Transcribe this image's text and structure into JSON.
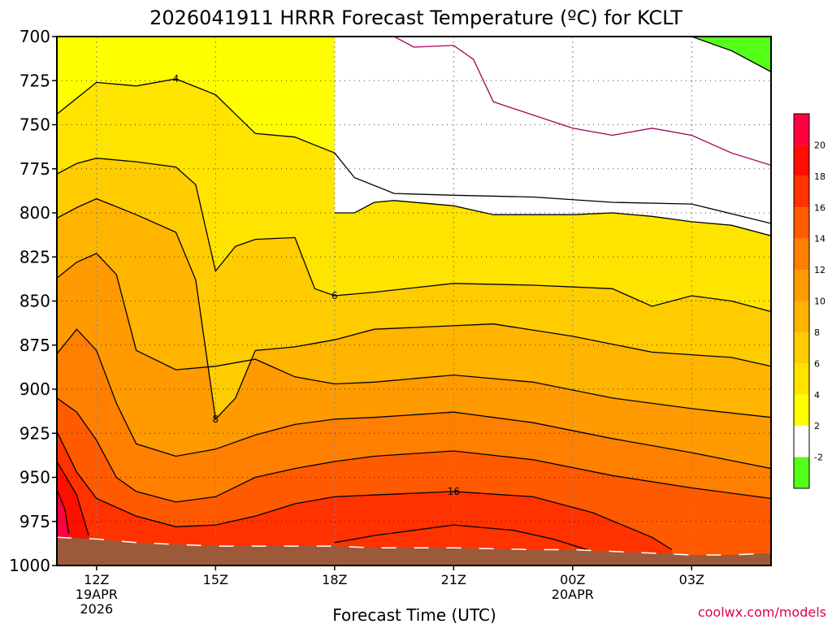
{
  "chart_data": {
    "type": "heatmap",
    "title": "2026041911 HRRR Forecast Temperature (ºC) for KCLT",
    "xlabel": "Forecast Time (UTC)",
    "ylabel": "",
    "watermark": "coolwx.com/models",
    "y_axis": {
      "scale": "pressure",
      "ticks": [
        700,
        725,
        750,
        775,
        800,
        825,
        850,
        875,
        900,
        925,
        950,
        975,
        1000
      ],
      "labels": [
        "700",
        "725",
        "750",
        "775",
        "800",
        "825",
        "850",
        "875",
        "900",
        "925",
        "950",
        "975",
        "1000"
      ],
      "ylim": [
        1000,
        700
      ]
    },
    "x_axis": {
      "ticks_hours": [
        12,
        15,
        18,
        21,
        24,
        27
      ],
      "labels": [
        "12Z",
        "15Z",
        "18Z",
        "21Z",
        "00Z",
        "03Z"
      ],
      "sublabels": [
        "19APR\n2026",
        "",
        "",
        "",
        "20APR",
        ""
      ],
      "xlim_hours": [
        11,
        29
      ]
    },
    "grid": true,
    "colorbar": {
      "levels": [
        -2,
        2,
        4,
        6,
        8,
        10,
        12,
        14,
        16,
        18,
        20
      ],
      "labels": [
        "-2",
        "2",
        "4",
        "6",
        "8",
        "10",
        "12",
        "14",
        "16",
        "18",
        "20"
      ],
      "colors": [
        "#55ff1a",
        "#ffffff",
        "#ffff00",
        "#ffe400",
        "#ffcc00",
        "#ffb400",
        "#ff9b00",
        "#ff7f00",
        "#ff5a00",
        "#ff3200",
        "#ff0f00",
        "#ff0040"
      ]
    },
    "isotherms": [
      {
        "value": 0,
        "labeled": false,
        "points": [
          [
            17.0,
            700
          ],
          [
            18.0,
            700
          ],
          [
            19.5,
            700
          ],
          [
            20.0,
            706
          ],
          [
            21.0,
            705
          ],
          [
            21.5,
            713
          ],
          [
            22.0,
            737
          ],
          [
            24.0,
            752
          ],
          [
            25.0,
            756
          ],
          [
            26.0,
            752
          ],
          [
            27.0,
            756
          ],
          [
            28.0,
            766
          ],
          [
            29.0,
            773
          ]
        ]
      },
      {
        "value": 2,
        "labeled": false,
        "points": [
          [
            18.0,
            800
          ],
          [
            18.5,
            800
          ],
          [
            19.0,
            794
          ],
          [
            19.5,
            793
          ],
          [
            21.0,
            796
          ],
          [
            22.0,
            801
          ],
          [
            24.0,
            801
          ],
          [
            25.0,
            800
          ],
          [
            26.0,
            802
          ],
          [
            27.0,
            805
          ],
          [
            28.0,
            807
          ],
          [
            29.0,
            813
          ]
        ]
      },
      {
        "value": 4,
        "labeled": true,
        "label_at": [
          14.0,
          724
        ],
        "points": [
          [
            11.0,
            744
          ],
          [
            11.5,
            735
          ],
          [
            12.0,
            726
          ],
          [
            13.0,
            728
          ],
          [
            14.0,
            724
          ],
          [
            15.0,
            733
          ],
          [
            16.0,
            755
          ],
          [
            17.0,
            757
          ],
          [
            18.0,
            766
          ],
          [
            18.5,
            780
          ],
          [
            19.5,
            789
          ],
          [
            21.0,
            790
          ],
          [
            23.0,
            791
          ],
          [
            25.0,
            794
          ],
          [
            27.0,
            795
          ],
          [
            29.0,
            806
          ]
        ]
      },
      {
        "value": 6,
        "labeled": true,
        "label_at": [
          18.0,
          847
        ],
        "points": [
          [
            11.0,
            778
          ],
          [
            11.5,
            772
          ],
          [
            12.0,
            769
          ],
          [
            13.0,
            771
          ],
          [
            14.0,
            774
          ],
          [
            14.5,
            784
          ],
          [
            15.0,
            833
          ],
          [
            15.5,
            819
          ],
          [
            16.0,
            815
          ],
          [
            17.0,
            814
          ],
          [
            17.5,
            843
          ],
          [
            18.0,
            847
          ],
          [
            19.0,
            845
          ],
          [
            21.0,
            840
          ],
          [
            23.0,
            841
          ],
          [
            25.0,
            843
          ],
          [
            26.0,
            853
          ],
          [
            27.0,
            847
          ],
          [
            28.0,
            850
          ],
          [
            29.0,
            856
          ]
        ]
      },
      {
        "value": 8,
        "labeled": true,
        "label_at": [
          15.0,
          917
        ],
        "points": [
          [
            11.0,
            803
          ],
          [
            11.5,
            797
          ],
          [
            12.0,
            792
          ],
          [
            13.0,
            801
          ],
          [
            14.0,
            811
          ],
          [
            14.5,
            838
          ],
          [
            15.0,
            917
          ],
          [
            15.5,
            905
          ],
          [
            16.0,
            878
          ],
          [
            17.0,
            876
          ],
          [
            18.0,
            872
          ],
          [
            19.0,
            866
          ],
          [
            21.0,
            864
          ],
          [
            22.0,
            863
          ],
          [
            24.0,
            870
          ],
          [
            26.0,
            879
          ],
          [
            28.0,
            882
          ],
          [
            29.0,
            887
          ]
        ]
      },
      {
        "value": 10,
        "labeled": false,
        "points": [
          [
            11.0,
            837
          ],
          [
            11.5,
            828
          ],
          [
            12.0,
            823
          ],
          [
            12.5,
            835
          ],
          [
            13.0,
            878
          ],
          [
            14.0,
            889
          ],
          [
            15.0,
            887
          ],
          [
            16.0,
            883
          ],
          [
            17.0,
            893
          ],
          [
            18.0,
            897
          ],
          [
            19.0,
            896
          ],
          [
            21.0,
            892
          ],
          [
            23.0,
            896
          ],
          [
            25.0,
            905
          ],
          [
            27.0,
            911
          ],
          [
            29.0,
            916
          ]
        ]
      },
      {
        "value": 12,
        "labeled": false,
        "points": [
          [
            11.0,
            880
          ],
          [
            11.5,
            866
          ],
          [
            12.0,
            878
          ],
          [
            12.5,
            908
          ],
          [
            13.0,
            931
          ],
          [
            14.0,
            938
          ],
          [
            15.0,
            934
          ],
          [
            16.0,
            926
          ],
          [
            17.0,
            920
          ],
          [
            18.0,
            917
          ],
          [
            19.0,
            916
          ],
          [
            21.0,
            913
          ],
          [
            23.0,
            919
          ],
          [
            25.0,
            928
          ],
          [
            27.0,
            936
          ],
          [
            29.0,
            945
          ]
        ]
      },
      {
        "value": 14,
        "labeled": false,
        "points": [
          [
            11.0,
            905
          ],
          [
            11.5,
            913
          ],
          [
            12.0,
            929
          ],
          [
            12.5,
            950
          ],
          [
            13.0,
            958
          ],
          [
            14.0,
            964
          ],
          [
            15.0,
            961
          ],
          [
            16.0,
            950
          ],
          [
            17.0,
            945
          ],
          [
            18.0,
            941
          ],
          [
            19.0,
            938
          ],
          [
            21.0,
            935
          ],
          [
            23.0,
            940
          ],
          [
            25.0,
            949
          ],
          [
            27.0,
            956
          ],
          [
            29.0,
            962
          ]
        ]
      },
      {
        "value": 16,
        "labeled": true,
        "label_at": [
          21.0,
          958
        ],
        "points": [
          [
            11.0,
            924
          ],
          [
            11.5,
            947
          ],
          [
            12.0,
            962
          ],
          [
            13.0,
            972
          ],
          [
            14.0,
            978
          ],
          [
            15.0,
            977
          ],
          [
            16.0,
            972
          ],
          [
            17.0,
            965
          ],
          [
            18.0,
            961
          ],
          [
            19.0,
            960
          ],
          [
            21.0,
            958
          ],
          [
            23.0,
            961
          ],
          [
            24.5,
            970
          ],
          [
            26.0,
            984
          ],
          [
            26.5,
            991
          ]
        ]
      },
      {
        "value": 18,
        "labeled": false,
        "points": [
          [
            11.0,
            941
          ],
          [
            11.5,
            960
          ],
          [
            11.8,
            983
          ]
        ]
      },
      {
        "value": 18,
        "labeled": false,
        "points": [
          [
            18.0,
            987
          ],
          [
            19.0,
            983
          ],
          [
            21.0,
            977
          ],
          [
            22.5,
            980
          ],
          [
            23.5,
            985
          ],
          [
            24.5,
            992
          ]
        ]
      },
      {
        "value": 20,
        "labeled": false,
        "points": [
          [
            11.0,
            957
          ],
          [
            11.2,
            968
          ],
          [
            11.3,
            982
          ]
        ]
      },
      {
        "value": -2,
        "labeled": false,
        "points": [
          [
            27.0,
            700
          ],
          [
            28.0,
            708
          ],
          [
            29.0,
            720
          ]
        ]
      }
    ],
    "surface_pressure": [
      [
        11.0,
        984
      ],
      [
        12.0,
        985
      ],
      [
        13.0,
        987
      ],
      [
        14.0,
        988
      ],
      [
        15.0,
        989
      ],
      [
        16.0,
        989
      ],
      [
        17.0,
        989
      ],
      [
        18.0,
        989
      ],
      [
        19.0,
        990
      ],
      [
        21.0,
        990
      ],
      [
        23.0,
        991
      ],
      [
        24.0,
        991
      ],
      [
        25.0,
        992
      ],
      [
        26.0,
        993
      ],
      [
        27.0,
        994
      ],
      [
        28.0,
        994
      ],
      [
        29.0,
        993
      ]
    ]
  }
}
